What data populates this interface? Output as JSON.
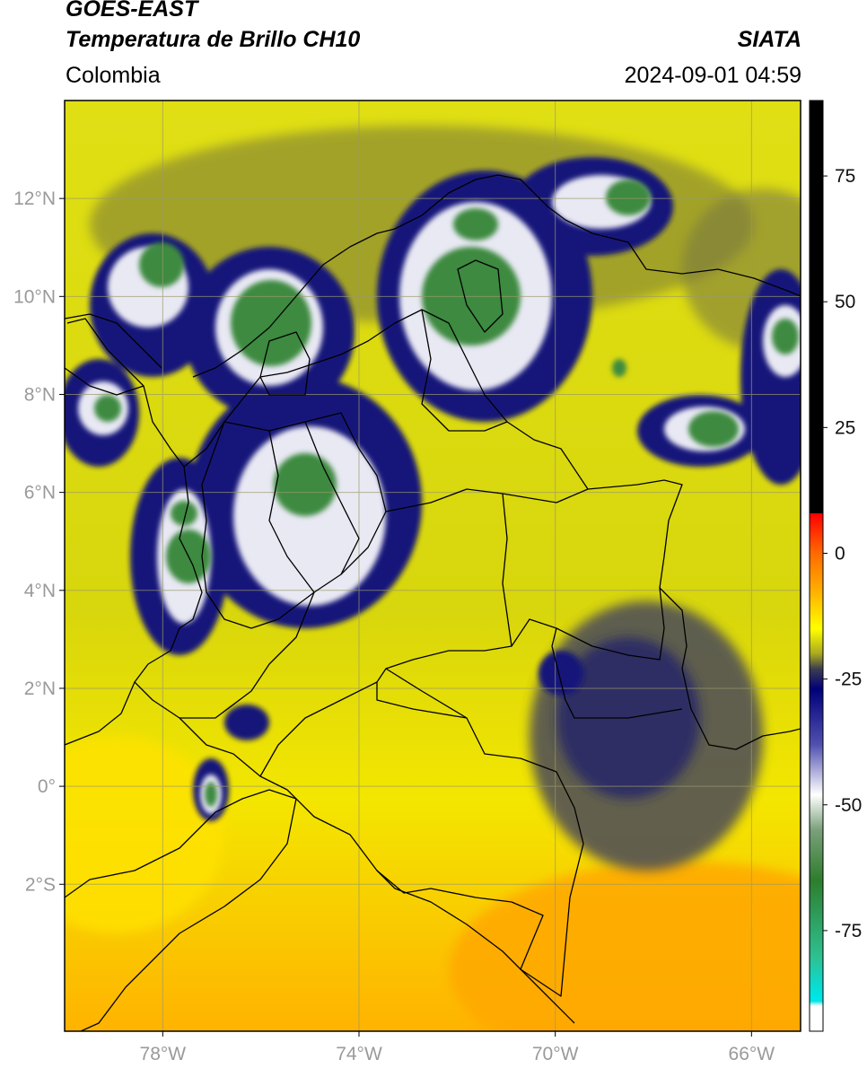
{
  "header": {
    "satellite": "GOES-EAST",
    "product": "Temperatura de Brillo CH10",
    "organization": "SIATA",
    "region": "Colombia",
    "datetime": "2024-09-01 04:59"
  },
  "map": {
    "lon_range": [
      -80,
      -65
    ],
    "lat_range": [
      -5,
      14
    ],
    "lat_ticks": [
      {
        "value": 12,
        "label": "12°N"
      },
      {
        "value": 10,
        "label": "10°N"
      },
      {
        "value": 8,
        "label": "8°N"
      },
      {
        "value": 6,
        "label": "6°N"
      },
      {
        "value": 4,
        "label": "4°N"
      },
      {
        "value": 2,
        "label": "2°N"
      },
      {
        "value": 0,
        "label": "0°"
      },
      {
        "value": -2,
        "label": "2°S"
      }
    ],
    "lon_ticks": [
      {
        "value": -78,
        "label": "78°W"
      },
      {
        "value": -74,
        "label": "74°W"
      },
      {
        "value": -70,
        "label": "70°W"
      },
      {
        "value": -66,
        "label": "66°W"
      }
    ]
  },
  "colorbar": {
    "range": [
      -95,
      90
    ],
    "ticks": [
      {
        "value": 75,
        "label": "75"
      },
      {
        "value": 50,
        "label": "50"
      },
      {
        "value": 25,
        "label": "25"
      },
      {
        "value": 0,
        "label": "0"
      },
      {
        "value": -25,
        "label": "-25"
      },
      {
        "value": -50,
        "label": "-50"
      },
      {
        "value": -75,
        "label": "-75"
      }
    ],
    "stops": [
      {
        "value": 90,
        "color": "#000000"
      },
      {
        "value": 8,
        "color": "#000000"
      },
      {
        "value": 7.9,
        "color": "#ff0000"
      },
      {
        "value": 0,
        "color": "#ff6a00"
      },
      {
        "value": -8,
        "color": "#ffb400"
      },
      {
        "value": -15,
        "color": "#ffff00"
      },
      {
        "value": -20,
        "color": "#a8a820"
      },
      {
        "value": -23,
        "color": "#3c3c50"
      },
      {
        "value": -27,
        "color": "#00007a"
      },
      {
        "value": -38,
        "color": "#5050b0"
      },
      {
        "value": -48,
        "color": "#ffffff"
      },
      {
        "value": -55,
        "color": "#7aa07a"
      },
      {
        "value": -65,
        "color": "#2e7d2e"
      },
      {
        "value": -80,
        "color": "#2fbf8f"
      },
      {
        "value": -88,
        "color": "#00e5e5"
      },
      {
        "value": -89,
        "color": "#00e5e5"
      },
      {
        "value": -90,
        "color": "#ffffff"
      }
    ]
  },
  "colors": {
    "background_field": "#d9d90a",
    "warm_field": "#ffd400",
    "cold_core": "#3a8a3a",
    "mid_cloud": "#1a1a7a",
    "border": "#000000"
  }
}
